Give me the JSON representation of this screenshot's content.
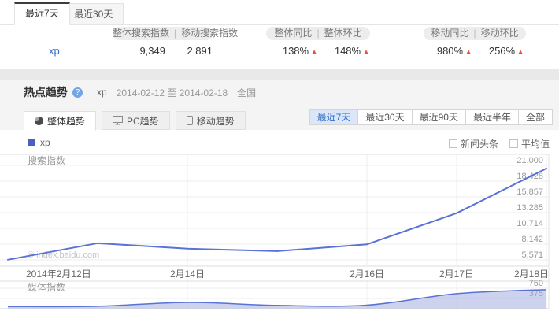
{
  "colors": {
    "accent_blue": "#5872d5",
    "legend_blue": "#4a5fc1",
    "area_fill": "#9ba8de",
    "arrow_orange": "#e8543b",
    "link_blue": "#3a6ec8",
    "active_range_bg": "#dbe7f9",
    "active_range_text": "#2e6cc9"
  },
  "top_tabs": [
    {
      "label": "最近7天",
      "active": true
    },
    {
      "label": "最近30天",
      "active": false
    }
  ],
  "summary": {
    "header_groups": [
      {
        "left": "整体搜索指数",
        "right": "移动搜索指数"
      },
      {
        "left": "整体同比",
        "right": "整体环比"
      },
      {
        "left": "移动同比",
        "right": "移动环比"
      }
    ],
    "separator": "|",
    "keyword": "xp",
    "up_arrow_glyph": "▲",
    "metrics": [
      {
        "value": "9,349",
        "up": false
      },
      {
        "value": "2,891",
        "up": false
      },
      {
        "value": "138%",
        "up": true
      },
      {
        "value": "148%",
        "up": true
      },
      {
        "value": "980%",
        "up": true
      },
      {
        "value": "256%",
        "up": true
      }
    ]
  },
  "trend": {
    "title": "热点趋势",
    "help_glyph": "?",
    "keyword": "xp",
    "date_range": "2014-02-12 至 2014-02-18",
    "region": "全国",
    "tabs": [
      {
        "label": "整体趋势",
        "icon": "pie-icon",
        "active": true
      },
      {
        "label": "PC趋势",
        "icon": "monitor-icon",
        "active": false
      },
      {
        "label": "移动趋势",
        "icon": "mobile-icon",
        "active": false
      }
    ],
    "ranges": [
      {
        "label": "最近7天",
        "active": true
      },
      {
        "label": "最近30天",
        "active": false
      },
      {
        "label": "最近90天",
        "active": false
      },
      {
        "label": "最近半年",
        "active": false
      },
      {
        "label": "全部",
        "active": false
      }
    ],
    "legend": {
      "keyword": "xp"
    },
    "checkboxes": [
      {
        "label": "新闻头条",
        "checked": false
      },
      {
        "label": "平均值",
        "checked": false
      }
    ]
  },
  "chart_data": [
    {
      "type": "line",
      "title": "搜索指数",
      "x": [
        "2014年2月12日",
        "2014年2月13日",
        "2014年2月14日",
        "2014年2月15日",
        "2014年2月16日",
        "2014年2月17日",
        "2014年2月18日"
      ],
      "x_tick_labels": [
        {
          "index": 0,
          "label": "2014年2月12日"
        },
        {
          "index": 2,
          "label": "2月14日"
        },
        {
          "index": 4,
          "label": "2月16日"
        },
        {
          "index": 5,
          "label": "2月17日"
        },
        {
          "index": 6,
          "label": "2月18日"
        }
      ],
      "series": [
        {
          "name": "xp",
          "values": [
            5600,
            8300,
            7400,
            7000,
            8100,
            13200,
            20500
          ]
        }
      ],
      "y_ticks": [
        {
          "value": 21000,
          "label": "21,000"
        },
        {
          "value": 18428,
          "label": "18,428"
        },
        {
          "value": 15857,
          "label": "15,857"
        },
        {
          "value": 13285,
          "label": "13,285"
        },
        {
          "value": 10714,
          "label": "10,714"
        },
        {
          "value": 8142,
          "label": "8,142"
        },
        {
          "value": 5571,
          "label": "5,571"
        }
      ],
      "ylim": [
        5571,
        21000
      ],
      "grid": true,
      "legend_position": "top-left",
      "watermark": "© index.baidu.com"
    },
    {
      "type": "area",
      "title": "媒体指数",
      "x": [
        "2014年2月12日",
        "2014年2月13日",
        "2014年2月14日",
        "2014年2月15日",
        "2014年2月16日",
        "2014年2月17日",
        "2014年2月18日"
      ],
      "series": [
        {
          "name": "xp",
          "values": [
            80,
            90,
            230,
            120,
            130,
            550,
            700
          ]
        }
      ],
      "y_ticks": [
        {
          "value": 750,
          "label": "750"
        },
        {
          "value": 375,
          "label": "375"
        }
      ],
      "ylim": [
        0,
        750
      ],
      "grid": true
    }
  ]
}
